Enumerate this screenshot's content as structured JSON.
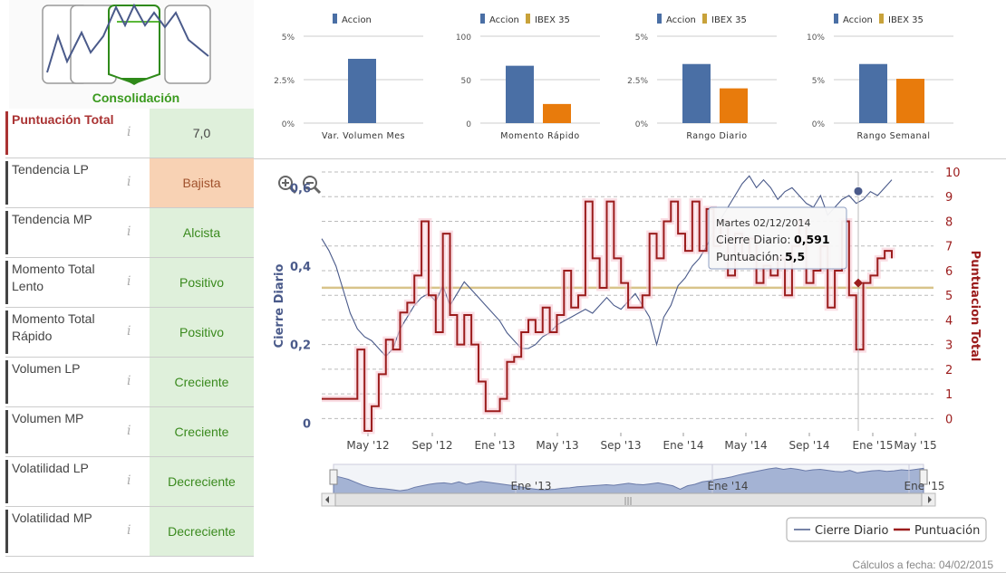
{
  "logo": {
    "label": "Consolidación"
  },
  "ratings": [
    {
      "label": "Puntuación Total",
      "value": "7,0",
      "style": "total"
    },
    {
      "label": "Tendencia LP",
      "value": "Bajista",
      "style": "warn"
    },
    {
      "label": "Tendencia MP",
      "value": "Alcista",
      "style": "good"
    },
    {
      "label": "Momento Total Lento",
      "value": "Positivo",
      "style": "good"
    },
    {
      "label": "Momento Total Rápido",
      "value": "Positivo",
      "style": "good"
    },
    {
      "label": "Volumen LP",
      "value": "Creciente",
      "style": "good"
    },
    {
      "label": "Volumen MP",
      "value": "Creciente",
      "style": "good"
    },
    {
      "label": "Volatilidad LP",
      "value": "Decreciente",
      "style": "good"
    },
    {
      "label": "Volatilidad MP",
      "value": "Decreciente",
      "style": "good"
    }
  ],
  "info_glyph": "i",
  "colors": {
    "accion": "#4a6fa5",
    "ibex": "#e87b0c",
    "ibex_legend": "#c8a23a",
    "close": "#4a5a8a",
    "score": "#9b1c1c",
    "avg": "#d8c48a"
  },
  "chart_data": [
    {
      "type": "bar",
      "categories": [
        "Var. Volumen Mes"
      ],
      "series": [
        {
          "name": "Accion",
          "values": [
            3.7
          ]
        }
      ],
      "yticks": [
        "5%",
        "2.5%",
        "0%"
      ],
      "ylim": [
        0,
        5
      ]
    },
    {
      "type": "bar",
      "categories": [
        "Momento Rápido"
      ],
      "series": [
        {
          "name": "Accion",
          "values": [
            66
          ]
        },
        {
          "name": "IBEX 35",
          "values": [
            22
          ]
        }
      ],
      "yticks": [
        "100",
        "50",
        "0"
      ],
      "ylim": [
        0,
        100
      ]
    },
    {
      "type": "bar",
      "categories": [
        "Rango Diario"
      ],
      "series": [
        {
          "name": "Accion",
          "values": [
            3.4
          ]
        },
        {
          "name": "IBEX 35",
          "values": [
            2.0
          ]
        }
      ],
      "yticks": [
        "5%",
        "2.5%",
        "0%"
      ],
      "ylim": [
        0,
        5
      ]
    },
    {
      "type": "bar",
      "categories": [
        "Rango Semanal"
      ],
      "series": [
        {
          "name": "Accion",
          "values": [
            6.8
          ]
        },
        {
          "name": "IBEX 35",
          "values": [
            5.1
          ]
        }
      ],
      "yticks": [
        "10%",
        "5%",
        "0%"
      ],
      "ylim": [
        0,
        10
      ]
    },
    {
      "type": "line",
      "ylabel": "Cierre Diario",
      "y2label": "Puntuacion Total",
      "ylim": [
        -0.02,
        0.64
      ],
      "y2lim": [
        -0.5,
        10
      ],
      "yticks": [
        "0,6",
        "0,4",
        "0,2",
        "0"
      ],
      "y2ticks": [
        "10",
        "9",
        "8",
        "7",
        "6",
        "5",
        "4",
        "3",
        "2",
        "1",
        "0"
      ],
      "xlabels": [
        "May '12",
        "Sep '12",
        "Ene '13",
        "May '13",
        "Sep '13",
        "Ene '14",
        "May '14",
        "Sep '14",
        "Ene '15",
        "May '15"
      ],
      "x_start": "2012-03",
      "x_end": "2015-05",
      "navigator_labels": [
        "Ene '13",
        "Ene '14",
        "Ene '15"
      ],
      "average_line": 0.345,
      "series": [
        {
          "name": "Cierre Diario",
          "axis": "left",
          "values": [
            0.47,
            0.44,
            0.4,
            0.34,
            0.28,
            0.24,
            0.22,
            0.21,
            0.19,
            0.17,
            0.19,
            0.24,
            0.27,
            0.3,
            0.32,
            0.33,
            0.31,
            0.35,
            0.3,
            0.33,
            0.36,
            0.34,
            0.32,
            0.3,
            0.28,
            0.26,
            0.23,
            0.21,
            0.19,
            0.19,
            0.2,
            0.22,
            0.23,
            0.25,
            0.26,
            0.27,
            0.28,
            0.29,
            0.28,
            0.3,
            0.32,
            0.3,
            0.29,
            0.31,
            0.33,
            0.3,
            0.27,
            0.2,
            0.27,
            0.3,
            0.35,
            0.37,
            0.4,
            0.42,
            0.45,
            0.49,
            0.52,
            0.55,
            0.58,
            0.61,
            0.63,
            0.6,
            0.62,
            0.6,
            0.57,
            0.59,
            0.6,
            0.58,
            0.56,
            0.55,
            0.58,
            0.53,
            0.55,
            0.57,
            0.58,
            0.56,
            0.57,
            0.59,
            0.58,
            0.6,
            0.62
          ]
        },
        {
          "name": "Puntuación",
          "axis": "right",
          "values": [
            0.8,
            0.8,
            0.8,
            0.8,
            0.8,
            2.8,
            -0.5,
            0.5,
            1.8,
            3.2,
            2.8,
            4.3,
            4.7,
            5.8,
            8.0,
            5.0,
            3.5,
            7.5,
            4.2,
            3.0,
            4.2,
            3.0,
            1.5,
            0.3,
            0.3,
            0.8,
            2.3,
            2.5,
            3.5,
            4.0,
            3.5,
            4.5,
            3.5,
            4.2,
            6.0,
            4.5,
            5.0,
            8.8,
            6.5,
            5.3,
            8.8,
            6.5,
            5.5,
            4.5,
            4.5,
            5.0,
            7.5,
            6.5,
            8.0,
            8.8,
            7.5,
            6.8,
            8.8,
            6.8,
            8.5,
            7.0,
            8.0,
            5.8,
            7.5,
            6.5,
            7.3,
            5.5,
            6.2,
            5.8,
            6.5,
            5.0,
            7.0,
            8.0,
            5.5,
            6.0,
            7.0,
            4.5,
            6.0,
            8.0,
            5.0,
            2.8,
            5.5,
            5.8,
            6.5,
            6.8,
            6.5
          ]
        }
      ],
      "tooltip": {
        "date": "Martes 02/12/2014",
        "close_label": "Cierre Diario:",
        "close_value": "0,591",
        "score_label": "Puntuación:",
        "score_value": "5,5"
      },
      "legend": [
        "Cierre Diario",
        "Puntuación"
      ]
    }
  ],
  "footer": "Cálculos a fecha: 04/02/2015"
}
